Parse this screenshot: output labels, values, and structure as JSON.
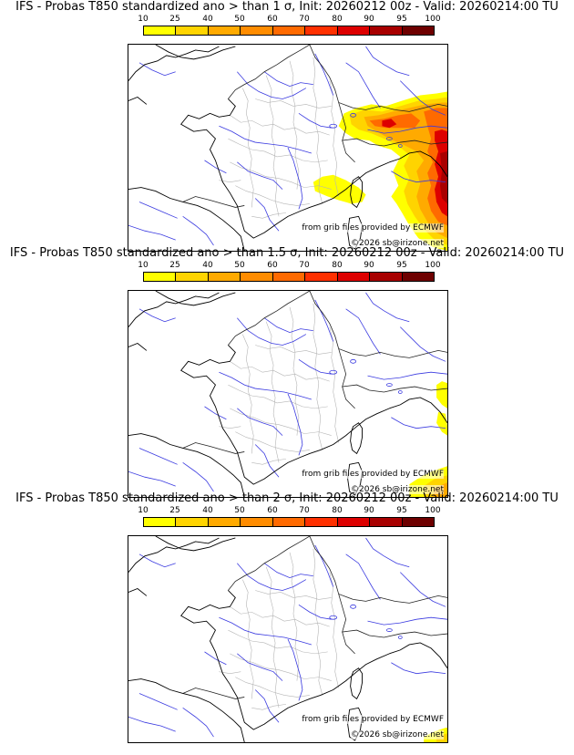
{
  "panels": [
    {
      "title": "IFS - Probas T850  standardized ano > than 1 σ, Init: 20260212 00z - Valid: 20260214:00 TU",
      "probability_field": "high over Alps, Switzerland, northern Italy and Tyrrhenian coast"
    },
    {
      "title": "IFS - Probas T850  standardized ano > than 1.5 σ, Init: 20260212 00z - Valid: 20260214:00 TU",
      "probability_field": "limited to eastern edge near Italy and southeast corner"
    },
    {
      "title": "IFS - Probas T850  standardized ano > than 2 σ, Init: 20260212 00z - Valid: 20260214:00 TU",
      "probability_field": "small patch in southeast corner"
    }
  ],
  "legend": {
    "ticks": [
      "10",
      "25",
      "40",
      "50",
      "60",
      "70",
      "80",
      "90",
      "95",
      "100"
    ],
    "colors": [
      "#ffff00",
      "#ffd400",
      "#ffaa00",
      "#ff8c00",
      "#ff6a00",
      "#ff3000",
      "#dd0000",
      "#a80000",
      "#6e0000"
    ]
  },
  "credits": {
    "source": "from grib files provided by ECMWF",
    "copyright": "©2026 sb@irizone.net"
  }
}
